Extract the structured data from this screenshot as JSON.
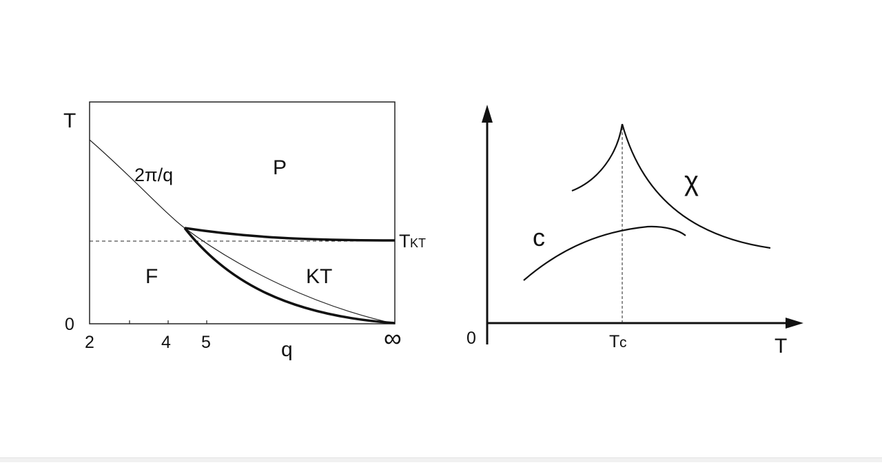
{
  "phase_diagram": {
    "y_axis_label": "T",
    "x_axis_label": "q",
    "zero_label": "0",
    "x_ticks": [
      "2",
      "4",
      "5",
      "∞"
    ],
    "curve_label": "2π/q",
    "region_p": "P",
    "region_f": "F",
    "region_kt": "KT",
    "tkt_main": "T",
    "tkt_sub": "KT"
  },
  "response_plot": {
    "origin_label": "0",
    "x_axis_label": "T",
    "tc_main": "T",
    "tc_sub": "c",
    "chi_label": "χ",
    "c_label": "c"
  }
}
